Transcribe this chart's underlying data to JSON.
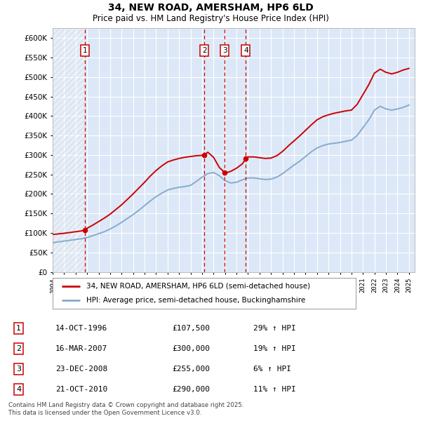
{
  "title": "34, NEW ROAD, AMERSHAM, HP6 6LD",
  "subtitle": "Price paid vs. HM Land Registry's House Price Index (HPI)",
  "ylim": [
    0,
    625000
  ],
  "yticks": [
    0,
    50000,
    100000,
    150000,
    200000,
    250000,
    300000,
    350000,
    400000,
    450000,
    500000,
    550000,
    600000
  ],
  "bg_color": "#dce8f7",
  "grid_color": "#ffffff",
  "purchases": [
    {
      "label": "1",
      "date": "14-OCT-1996",
      "price": 107500,
      "pct": "29%",
      "x_year": 1996.79
    },
    {
      "label": "2",
      "date": "16-MAR-2007",
      "price": 300000,
      "pct": "19%",
      "x_year": 2007.21
    },
    {
      "label": "3",
      "date": "23-DEC-2008",
      "price": 255000,
      "pct": "6%",
      "x_year": 2008.98
    },
    {
      "label": "4",
      "date": "21-OCT-2010",
      "price": 290000,
      "pct": "11%",
      "x_year": 2010.81
    }
  ],
  "legend_entries": [
    "34, NEW ROAD, AMERSHAM, HP6 6LD (semi-detached house)",
    "HPI: Average price, semi-detached house, Buckinghamshire"
  ],
  "footer": "Contains HM Land Registry data © Crown copyright and database right 2025.\nThis data is licensed under the Open Government Licence v3.0.",
  "red_color": "#cc0000",
  "blue_color": "#88aacc",
  "xmin": 1994.0,
  "xmax": 2025.5,
  "hpi_years": [
    1994.0,
    1994.5,
    1995.0,
    1995.5,
    1996.0,
    1996.5,
    1997.0,
    1997.5,
    1998.0,
    1998.5,
    1999.0,
    1999.5,
    2000.0,
    2000.5,
    2001.0,
    2001.5,
    2002.0,
    2002.5,
    2003.0,
    2003.5,
    2004.0,
    2004.5,
    2005.0,
    2005.5,
    2006.0,
    2006.5,
    2007.0,
    2007.5,
    2008.0,
    2008.5,
    2009.0,
    2009.5,
    2010.0,
    2010.5,
    2011.0,
    2011.5,
    2012.0,
    2012.5,
    2013.0,
    2013.5,
    2014.0,
    2014.5,
    2015.0,
    2015.5,
    2016.0,
    2016.5,
    2017.0,
    2017.5,
    2018.0,
    2018.5,
    2019.0,
    2019.5,
    2020.0,
    2020.5,
    2021.0,
    2021.5,
    2022.0,
    2022.5,
    2023.0,
    2023.5,
    2024.0,
    2024.5,
    2025.0
  ],
  "hpi_prices": [
    75000,
    77000,
    79000,
    81000,
    83000,
    85000,
    88000,
    93000,
    98000,
    103000,
    110000,
    118000,
    127000,
    137000,
    147000,
    158000,
    170000,
    182000,
    193000,
    202000,
    210000,
    214000,
    217000,
    219000,
    222000,
    232000,
    243000,
    252000,
    255000,
    247000,
    234000,
    228000,
    230000,
    236000,
    241000,
    241000,
    239000,
    237000,
    238000,
    243000,
    252000,
    263000,
    274000,
    284000,
    296000,
    308000,
    318000,
    324000,
    328000,
    330000,
    332000,
    335000,
    338000,
    350000,
    370000,
    390000,
    415000,
    425000,
    418000,
    415000,
    418000,
    422000,
    428000
  ],
  "red_years": [
    1994.0,
    1994.5,
    1995.0,
    1995.5,
    1996.0,
    1996.5,
    1996.79,
    1997.0,
    1997.5,
    1998.0,
    1998.5,
    1999.0,
    1999.5,
    2000.0,
    2000.5,
    2001.0,
    2001.5,
    2002.0,
    2002.5,
    2003.0,
    2003.5,
    2004.0,
    2004.5,
    2005.0,
    2005.5,
    2006.0,
    2006.5,
    2007.0,
    2007.21,
    2007.5,
    2008.0,
    2008.5,
    2008.98,
    2009.0,
    2009.5,
    2010.0,
    2010.5,
    2010.81,
    2011.0,
    2011.5,
    2012.0,
    2012.5,
    2013.0,
    2013.5,
    2014.0,
    2014.5,
    2015.0,
    2015.5,
    2016.0,
    2016.5,
    2017.0,
    2017.5,
    2018.0,
    2018.5,
    2019.0,
    2019.5,
    2020.0,
    2020.5,
    2021.0,
    2021.5,
    2022.0,
    2022.5,
    2023.0,
    2023.5,
    2024.0,
    2024.5,
    2025.0
  ],
  "red_prices": [
    96000,
    97500,
    99000,
    101000,
    103000,
    105000,
    107500,
    112000,
    120000,
    129000,
    138000,
    148000,
    160000,
    172000,
    186000,
    200000,
    215000,
    230000,
    246000,
    260000,
    272000,
    282000,
    287000,
    291000,
    294000,
    296000,
    298000,
    299000,
    300000,
    307000,
    294000,
    268000,
    255000,
    253000,
    258000,
    266000,
    277000,
    290000,
    295000,
    295000,
    293000,
    291000,
    292000,
    298000,
    309000,
    323000,
    336000,
    349000,
    363000,
    377000,
    390000,
    398000,
    403000,
    407000,
    410000,
    413000,
    415000,
    430000,
    455000,
    480000,
    510000,
    520000,
    512000,
    508000,
    512000,
    518000,
    522000
  ]
}
